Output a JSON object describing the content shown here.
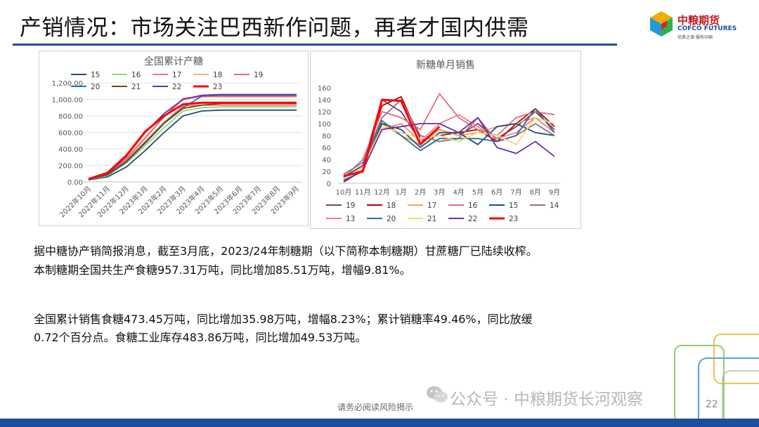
{
  "header": {
    "title": "产销情况：市场关注巴西新作问题，再者才国内供需",
    "logo_cn": "中粮期货",
    "logo_en": "COFCO FUTURES",
    "logo_sub": "优质之源 服务中国"
  },
  "colors": {
    "brand_blue": "#1f4e9a",
    "brand_red": "#c2171e"
  },
  "paragraphs": {
    "p1_line1": "据中糖协产销简报消息，截至3月底，2023/24年制糖期（以下简称本制糖期）甘蔗糖厂已陆续收榨。",
    "p1_line2": "本制糖期全国共生产食糖957.31万吨，同比增加85.51万吨，增幅9.81%。",
    "p2_line1": "全国累计销售食糖473.45万吨，同比增加35.98万吨，增幅8.23%；累计销糖率49.46%，同比放缓",
    "p2_line2": "0.72个百分点。食糖工业库存483.86万吨，同比增加49.53万吨。"
  },
  "footer": {
    "note": "请务必阅读风险揭示",
    "watermark": "公众号 · 中粮期货长河观察",
    "watermark_icon": "wechat-icon",
    "page": "22"
  },
  "chart_data": [
    {
      "type": "line",
      "title": "全国累计产糖",
      "xlabel": "",
      "ylabel": "",
      "ylim": [
        0,
        1200
      ],
      "yticks": [
        "0.00",
        "200.00",
        "400.00",
        "600.00",
        "800.00",
        "1,000.00",
        "1,200.00"
      ],
      "categories": [
        "2022年10月",
        "2022年11月",
        "2022年12月",
        "2023年1月",
        "2023年2月",
        "2023年3月",
        "2023年4月",
        "2023年5月",
        "2023年6月",
        "2023年7月",
        "2023年8月",
        "2023年9月"
      ],
      "legend_position": "top",
      "grid": true,
      "series": [
        {
          "name": "15",
          "color": "#1f4e79",
          "values": [
            25,
            60,
            180,
            380,
            600,
            800,
            860,
            870,
            870,
            870,
            870,
            870
          ]
        },
        {
          "name": "16",
          "color": "#9bd47a",
          "values": [
            30,
            75,
            230,
            440,
            660,
            860,
            900,
            910,
            910,
            910,
            910,
            910
          ]
        },
        {
          "name": "17",
          "color": "#e8777a",
          "values": [
            30,
            90,
            260,
            490,
            720,
            920,
            930,
            930,
            930,
            930,
            930,
            930
          ]
        },
        {
          "name": "18",
          "color": "#f4b183",
          "values": [
            35,
            95,
            290,
            540,
            790,
            1000,
            1030,
            1030,
            1030,
            1030,
            1030,
            1030
          ]
        },
        {
          "name": "19",
          "color": "#e06b80",
          "values": [
            35,
            95,
            280,
            530,
            790,
            1010,
            1040,
            1040,
            1040,
            1040,
            1040,
            1040
          ]
        },
        {
          "name": "20",
          "color": "#2e75b6",
          "values": [
            30,
            90,
            250,
            480,
            720,
            900,
            1040,
            1050,
            1050,
            1050,
            1050,
            1050
          ]
        },
        {
          "name": "21",
          "color": "#6b4a12",
          "values": [
            30,
            85,
            240,
            470,
            710,
            890,
            930,
            950,
            950,
            950,
            950,
            950
          ]
        },
        {
          "name": "22",
          "color": "#7030a0",
          "values": [
            30,
            95,
            310,
            600,
            830,
            1000,
            1050,
            1060,
            1060,
            1060,
            1060,
            1060
          ]
        },
        {
          "name": "23",
          "color": "#ff0000",
          "values": [
            35,
            110,
            320,
            610,
            800,
            940,
            960,
            960,
            960,
            960,
            960,
            960
          ]
        }
      ]
    },
    {
      "type": "line",
      "title": "新糖单月销售",
      "xlabel": "",
      "ylabel": "",
      "ylim": [
        0,
        160
      ],
      "yticks": [
        "0",
        "20",
        "40",
        "60",
        "80",
        "100",
        "120",
        "140",
        "160"
      ],
      "categories": [
        "10月",
        "11月",
        "12月",
        "1月",
        "2月",
        "3月",
        "4月",
        "5月",
        "6月",
        "7月",
        "8月",
        "9月"
      ],
      "legend_position": "bottom",
      "grid": false,
      "series": [
        {
          "name": "19",
          "color": "#7b3f5e",
          "values": [
            10,
            30,
            140,
            120,
            70,
            90,
            80,
            100,
            75,
            95,
            120,
            90
          ]
        },
        {
          "name": "18",
          "color": "#c00000",
          "values": [
            8,
            25,
            130,
            145,
            75,
            80,
            85,
            90,
            70,
            100,
            125,
            95
          ]
        },
        {
          "name": "17",
          "color": "#f4a460",
          "values": [
            12,
            28,
            100,
            80,
            65,
            90,
            80,
            85,
            95,
            100,
            110,
            100
          ]
        },
        {
          "name": "16",
          "color": "#e06b80",
          "values": [
            10,
            40,
            120,
            110,
            90,
            150,
            110,
            90,
            80,
            110,
            120,
            115
          ]
        },
        {
          "name": "15",
          "color": "#1f4e79",
          "values": [
            5,
            20,
            100,
            90,
            60,
            85,
            85,
            65,
            95,
            100,
            85,
            80
          ]
        },
        {
          "name": "14",
          "color": "#8e6e8e",
          "values": [
            15,
            35,
            110,
            140,
            80,
            70,
            75,
            110,
            70,
            80,
            100,
            80
          ]
        },
        {
          "name": "13",
          "color": "#f08080",
          "values": [
            12,
            30,
            90,
            100,
            70,
            100,
            115,
            95,
            75,
            85,
            110,
            85
          ]
        },
        {
          "name": "20",
          "color": "#2f6f8f",
          "values": [
            10,
            30,
            105,
            80,
            55,
            75,
            75,
            75,
            70,
            80,
            125,
            85
          ]
        },
        {
          "name": "21",
          "color": "#f7d774",
          "values": [
            8,
            25,
            95,
            85,
            75,
            80,
            70,
            85,
            80,
            65,
            110,
            100
          ]
        },
        {
          "name": "22",
          "color": "#7030a0",
          "values": [
            2,
            22,
            90,
            95,
            100,
            100,
            85,
            110,
            60,
            50,
            70,
            45
          ]
        },
        {
          "name": "23",
          "color": "#ff0000",
          "values": [
            12,
            20,
            140,
            138,
            65,
            95,
            null,
            null,
            null,
            null,
            null,
            null
          ]
        }
      ]
    }
  ]
}
